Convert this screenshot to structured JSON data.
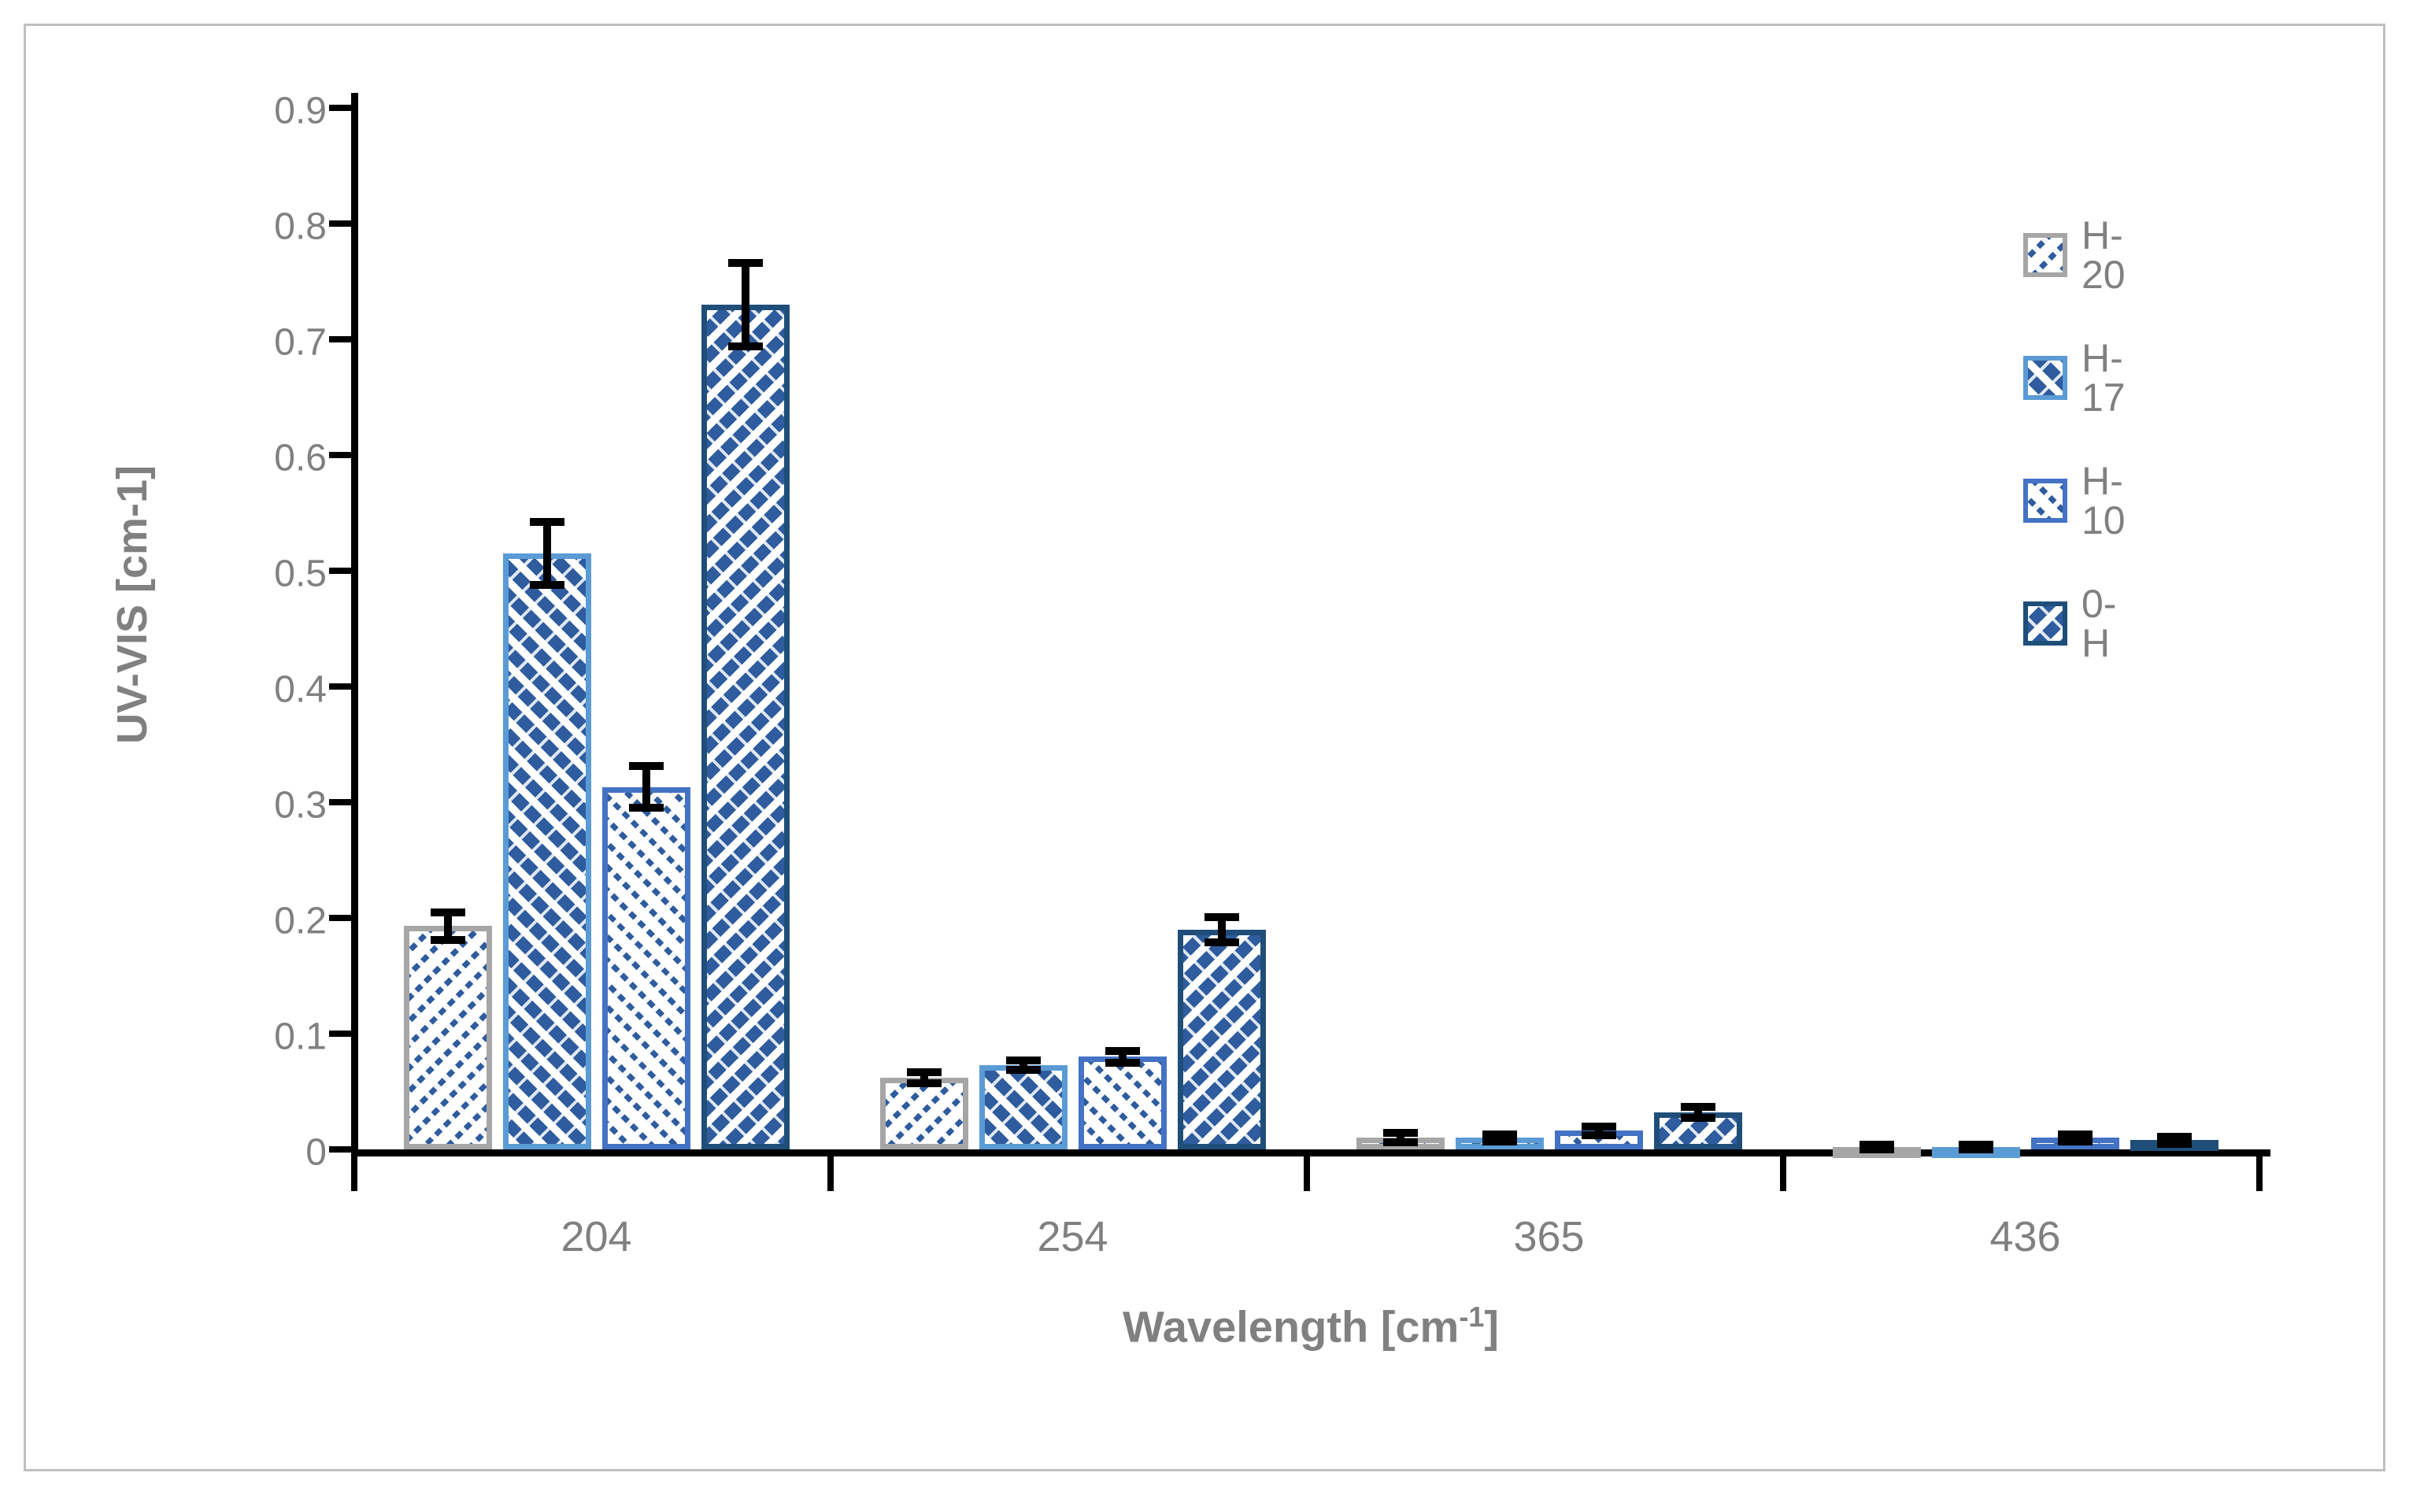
{
  "figure": {
    "background": "#ffffff",
    "frame_color": "#BFBFBF",
    "axis_color": "#000000",
    "text_color": "#808080"
  },
  "chart_data": {
    "type": "bar",
    "title": "",
    "categories": [
      "204",
      "254",
      "365",
      "436"
    ],
    "series": [
      {
        "name": "H-20",
        "values": [
          0.193,
          0.062,
          0.01,
          0.002
        ],
        "errors": [
          0.012,
          0.005,
          0.004,
          0.002
        ],
        "border_color": "#A6A6A6",
        "hatch_color": "#2E5C9E",
        "hatch_direction": "/",
        "hatch_style": "thin-dotted"
      },
      {
        "name": "H-17",
        "values": [
          0.515,
          0.073,
          0.01,
          0.002
        ],
        "errors": [
          0.027,
          0.004,
          0.003,
          0.002
        ],
        "border_color": "#5B9BD5",
        "hatch_color": "#2E5C9E",
        "hatch_direction": "\\",
        "hatch_style": "thick-stripe"
      },
      {
        "name": "H-10",
        "values": [
          0.313,
          0.08,
          0.016,
          0.01
        ],
        "errors": [
          0.018,
          0.005,
          0.004,
          0.003
        ],
        "border_color": "#4472C4",
        "hatch_color": "#2E5C9E",
        "hatch_direction": "\\",
        "hatch_style": "thin-dotted"
      },
      {
        "name": "0-H",
        "values": [
          0.73,
          0.19,
          0.032,
          0.008
        ],
        "errors": [
          0.036,
          0.011,
          0.005,
          0.003
        ],
        "border_color": "#1F4E79",
        "hatch_color": "#2E5C9E",
        "hatch_direction": "/",
        "hatch_style": "thick-stripe"
      }
    ],
    "error_bar_color": "#000000",
    "xlabel": {
      "text": "Wavelength [cm",
      "sup": "-1",
      "close": "]"
    },
    "ylabel": "UV-VIS  [cm-1]",
    "ylim": [
      0,
      0.9
    ],
    "ytick_step": 0.1,
    "ytick_labels": [
      "0",
      "0.1",
      "0.2",
      "0.3",
      "0.4",
      "0.5",
      "0.6",
      "0.7",
      "0.8",
      "0.9"
    ],
    "grid": false,
    "legend_position": "right",
    "legend_labels": [
      "H-20",
      "H-17",
      "H-10",
      "0-H"
    ]
  }
}
